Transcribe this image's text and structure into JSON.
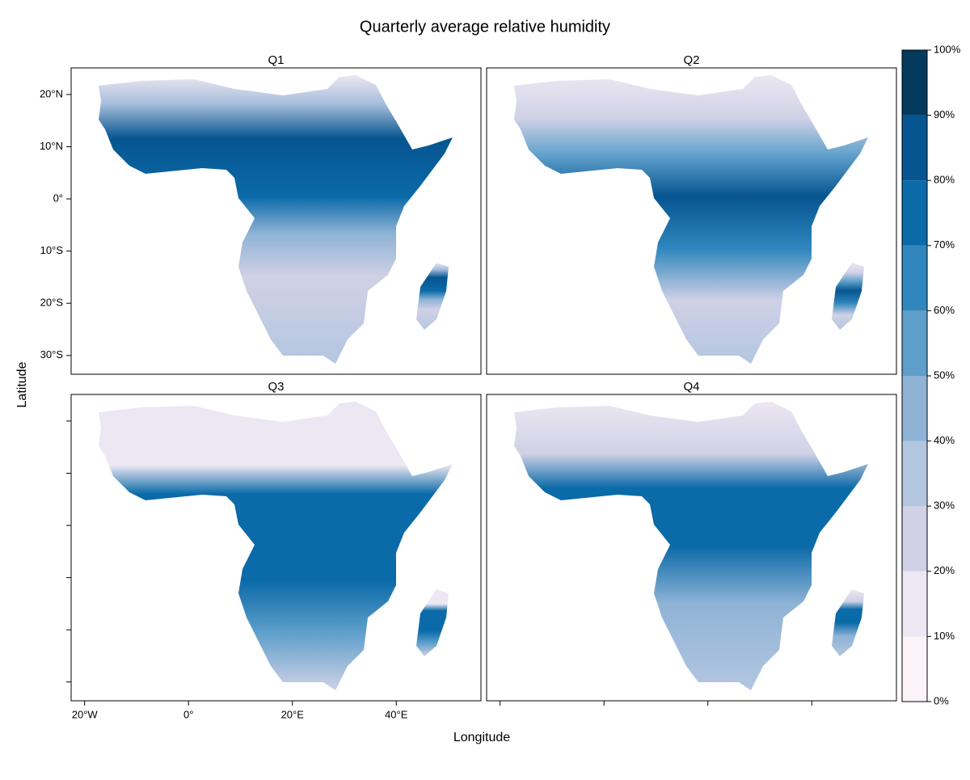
{
  "map": {
    "title": "Quarterly average relative humidity",
    "x_label": "Longitude",
    "y_label": "Latitude",
    "panels": [
      "Q1",
      "Q2",
      "Q3",
      "Q4"
    ],
    "xlim": [
      -22.6,
      56.3
    ],
    "ylim": [
      -33.6,
      25.1
    ],
    "xticks": [
      {
        "value": -20,
        "label": "20°W"
      },
      {
        "value": 0,
        "label": "0°"
      },
      {
        "value": 20,
        "label": "20°E"
      },
      {
        "value": 40,
        "label": "40°E"
      }
    ],
    "yticks": [
      {
        "value": 20,
        "label": "20°N"
      },
      {
        "value": 10,
        "label": "10°N"
      },
      {
        "value": 0,
        "label": "0°"
      },
      {
        "value": -10,
        "label": "10°S"
      },
      {
        "value": -20,
        "label": "20°S"
      },
      {
        "value": -30,
        "label": "30°S"
      }
    ],
    "colorbar": {
      "breaks": [
        {
          "value": 0,
          "label": "0%"
        },
        {
          "value": 10,
          "label": "10%"
        },
        {
          "value": 20,
          "label": "20%"
        },
        {
          "value": 30,
          "label": "30%"
        },
        {
          "value": 40,
          "label": "40%"
        },
        {
          "value": 50,
          "label": "50%"
        },
        {
          "value": 60,
          "label": "60%"
        },
        {
          "value": 70,
          "label": "70%"
        },
        {
          "value": 80,
          "label": "80%"
        },
        {
          "value": 90,
          "label": "90%"
        },
        {
          "value": 100,
          "label": "100%"
        }
      ],
      "colors": [
        "#fbf3f8",
        "#ece7f2",
        "#d0d1e6",
        "#b3c6e0",
        "#8fb3d6",
        "#5e9fcb",
        "#2f86bd",
        "#0b6aa8",
        "#065590",
        "#033a5e"
      ]
    }
  }
}
